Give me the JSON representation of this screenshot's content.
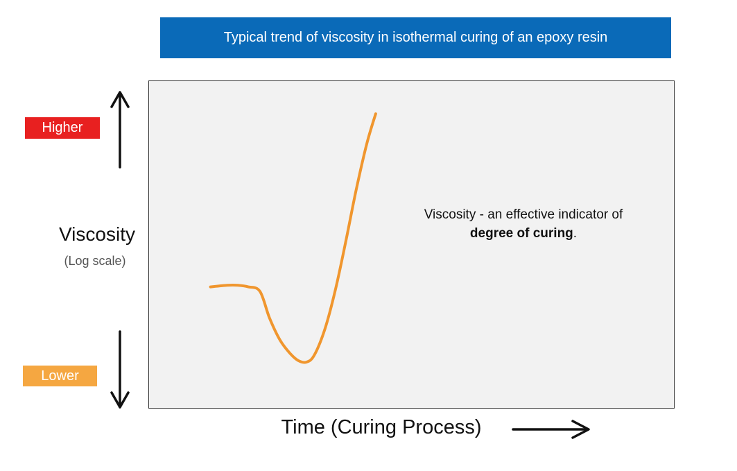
{
  "title": "Typical trend of viscosity in isothermal curing of an epoxy resin",
  "annotation": {
    "line1": "Viscosity - an effective indicator of",
    "line2_bold": "degree of curing",
    "line2_tail": "."
  },
  "colors": {
    "title_banner": "#0a6ab8",
    "higher_badge": "#e82020",
    "lower_badge": "#f5a741",
    "curve": "#f0962e",
    "plot_background": "#f2f2f2"
  },
  "chart_data": {
    "type": "line",
    "title": "Typical trend of viscosity in isothermal curing of an epoxy resin",
    "xlabel": "Time (Curing Process)",
    "ylabel": "Viscosity",
    "ylabel_note": "(Log scale)",
    "y_scale": "log",
    "y_direction_labels": {
      "high": "Higher",
      "low": "Lower"
    },
    "grid": false,
    "legend": "none",
    "x_range": [
      0,
      100
    ],
    "y_range": [
      0,
      100
    ],
    "series": [
      {
        "values_note": "qualitative shape; unitless relative values",
        "x": [
          11.8,
          15,
          17,
          19,
          21.2,
          23,
          25,
          27,
          28.5,
          30,
          31.5,
          33.5,
          35.5,
          37.5,
          39.5,
          41.5,
          43.2
        ],
        "y": [
          33.8,
          34.4,
          34.4,
          33.8,
          32.1,
          22,
          13.5,
          8.2,
          5.6,
          5,
          7.6,
          17.4,
          32.3,
          51,
          71,
          88.5,
          100
        ]
      }
    ]
  }
}
